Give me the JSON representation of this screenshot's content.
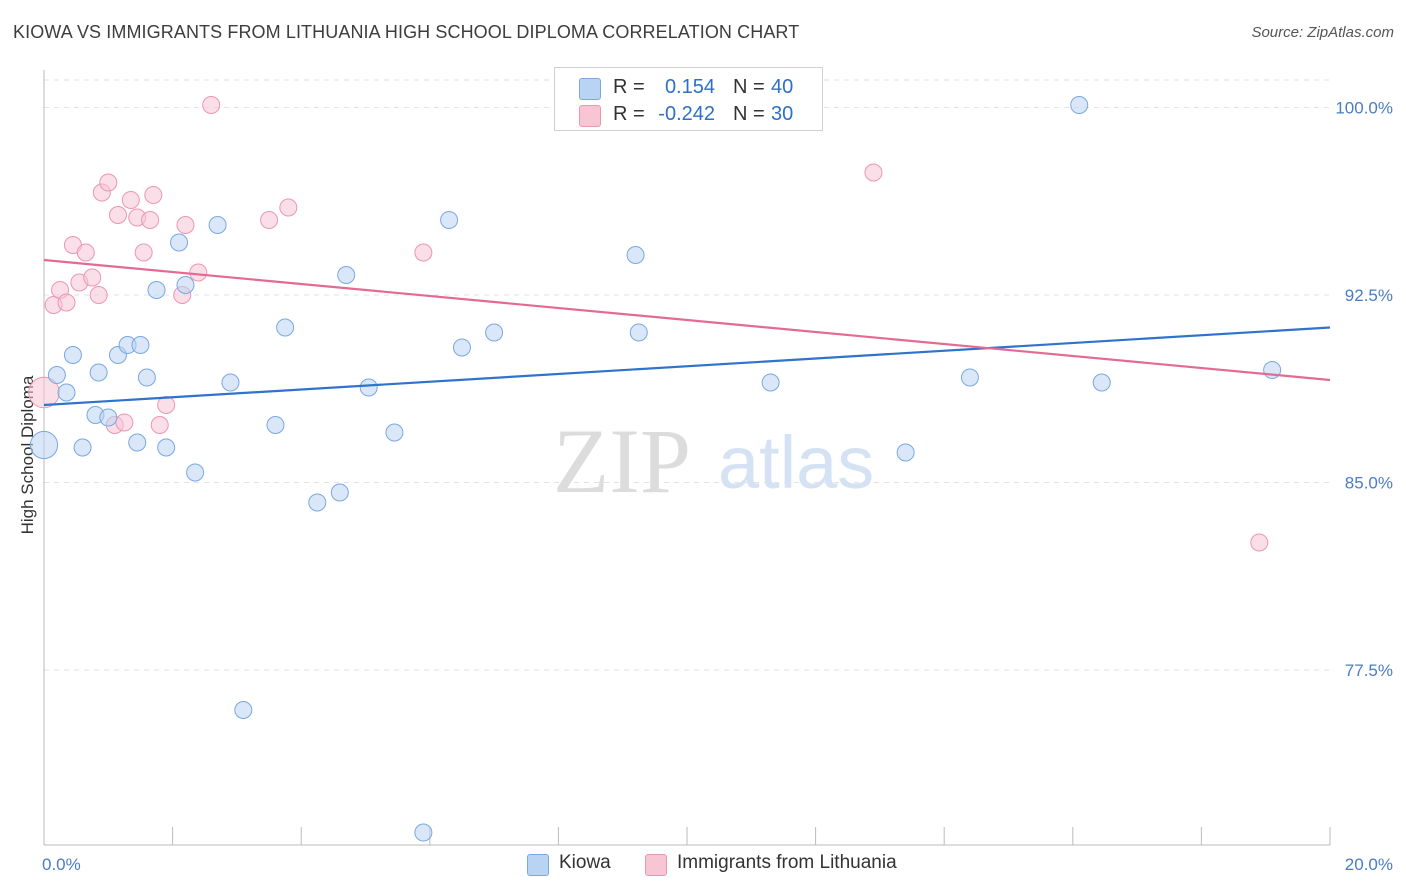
{
  "title": "KIOWA VS IMMIGRANTS FROM LITHUANIA HIGH SCHOOL DIPLOMA CORRELATION CHART",
  "source": "Source: ZipAtlas.com",
  "watermark": {
    "zip": "ZIP",
    "atlas": "atlas"
  },
  "legend_top": {
    "kiowa": {
      "r_label": "R =",
      "r_value": "0.154",
      "n_label": "N =",
      "n_value": "40"
    },
    "lithuania": {
      "r_label": "R =",
      "r_value": "-0.242",
      "n_label": "N =",
      "n_value": "30"
    }
  },
  "legend_bottom": {
    "kiowa": "Kiowa",
    "lithuania": "Immigrants from Lithuania"
  },
  "colors": {
    "kiowa_fill": "#b9d3f3",
    "kiowa_stroke": "#7aa8e0",
    "kiowa_line": "#2f73cc",
    "lith_fill": "#f8c5d5",
    "lith_stroke": "#ec96b2",
    "lith_line": "#e26a94",
    "grid": "#e2e2e2",
    "axis": "#bbbbbb"
  },
  "chart_data": {
    "type": "scatter",
    "title": "KIOWA VS IMMIGRANTS FROM LITHUANIA HIGH SCHOOL DIPLOMA CORRELATION CHART",
    "xlabel": "",
    "ylabel": "High School Diploma",
    "xlim": [
      0,
      20
    ],
    "ylim": [
      70.5,
      101.5
    ],
    "x_tick_labels": [
      "0.0%",
      "20.0%"
    ],
    "y_ticks": [
      77.5,
      85.0,
      92.5,
      100.0
    ],
    "y_tick_labels": [
      "77.5%",
      "85.0%",
      "92.5%",
      "100.0%"
    ],
    "grid": true,
    "series": [
      {
        "name": "Kiowa",
        "points": [
          [
            0.0,
            86.5,
            1.6
          ],
          [
            0.2,
            89.3,
            1
          ],
          [
            0.35,
            88.6,
            1
          ],
          [
            0.45,
            90.1,
            1
          ],
          [
            0.6,
            86.4,
            1
          ],
          [
            0.8,
            87.7,
            1
          ],
          [
            0.85,
            89.4,
            1
          ],
          [
            1.0,
            87.6,
            1
          ],
          [
            1.15,
            90.1,
            1
          ],
          [
            1.3,
            90.5,
            1
          ],
          [
            1.45,
            86.6,
            1
          ],
          [
            1.5,
            90.5,
            1
          ],
          [
            1.6,
            89.2,
            1
          ],
          [
            1.75,
            92.7,
            1
          ],
          [
            1.9,
            86.4,
            1
          ],
          [
            2.1,
            94.6,
            1
          ],
          [
            2.2,
            92.9,
            1
          ],
          [
            2.35,
            85.4,
            1
          ],
          [
            2.7,
            95.3,
            1
          ],
          [
            2.9,
            89.0,
            1
          ],
          [
            3.1,
            75.9,
            1
          ],
          [
            3.6,
            87.3,
            1
          ],
          [
            3.75,
            91.2,
            1
          ],
          [
            4.25,
            84.2,
            1
          ],
          [
            4.6,
            84.6,
            1
          ],
          [
            4.7,
            93.3,
            1
          ],
          [
            5.05,
            88.8,
            1
          ],
          [
            5.45,
            87.0,
            1
          ],
          [
            5.9,
            71.0,
            1
          ],
          [
            6.3,
            95.5,
            1
          ],
          [
            6.5,
            90.4,
            1
          ],
          [
            7.0,
            91.0,
            1
          ],
          [
            9.2,
            94.1,
            1
          ],
          [
            9.25,
            91.0,
            1
          ],
          [
            11.3,
            89.0,
            1
          ],
          [
            13.4,
            86.2,
            1
          ],
          [
            14.4,
            89.2,
            1
          ],
          [
            16.1,
            100.1,
            1
          ],
          [
            16.45,
            89.0,
            1
          ],
          [
            19.1,
            89.5,
            1
          ]
        ],
        "trend": [
          [
            0.0,
            88.1
          ],
          [
            20.0,
            91.2
          ]
        ]
      },
      {
        "name": "Immigrants from Lithuania",
        "points": [
          [
            0.0,
            88.6,
            1.8
          ],
          [
            0.15,
            92.1,
            1
          ],
          [
            0.25,
            92.7,
            1
          ],
          [
            0.35,
            92.2,
            1
          ],
          [
            0.45,
            94.5,
            1
          ],
          [
            0.55,
            93.0,
            1
          ],
          [
            0.65,
            94.2,
            1
          ],
          [
            0.75,
            93.2,
            1
          ],
          [
            0.85,
            92.5,
            1
          ],
          [
            0.9,
            96.6,
            1
          ],
          [
            1.0,
            97.0,
            1
          ],
          [
            1.1,
            87.3,
            1
          ],
          [
            1.15,
            95.7,
            1
          ],
          [
            1.25,
            87.4,
            1
          ],
          [
            1.35,
            96.3,
            1
          ],
          [
            1.45,
            95.6,
            1
          ],
          [
            1.55,
            94.2,
            1
          ],
          [
            1.65,
            95.5,
            1
          ],
          [
            1.7,
            96.5,
            1
          ],
          [
            1.8,
            87.3,
            1
          ],
          [
            1.9,
            88.1,
            1
          ],
          [
            2.15,
            92.5,
            1
          ],
          [
            2.2,
            95.3,
            1
          ],
          [
            2.4,
            93.4,
            1
          ],
          [
            2.6,
            100.1,
            1
          ],
          [
            3.5,
            95.5,
            1
          ],
          [
            3.8,
            96.0,
            1
          ],
          [
            5.9,
            94.2,
            1
          ],
          [
            12.9,
            97.4,
            1
          ],
          [
            18.9,
            82.6,
            1
          ]
        ],
        "trend": [
          [
            0.0,
            93.9
          ],
          [
            20.0,
            89.1
          ]
        ]
      }
    ]
  }
}
